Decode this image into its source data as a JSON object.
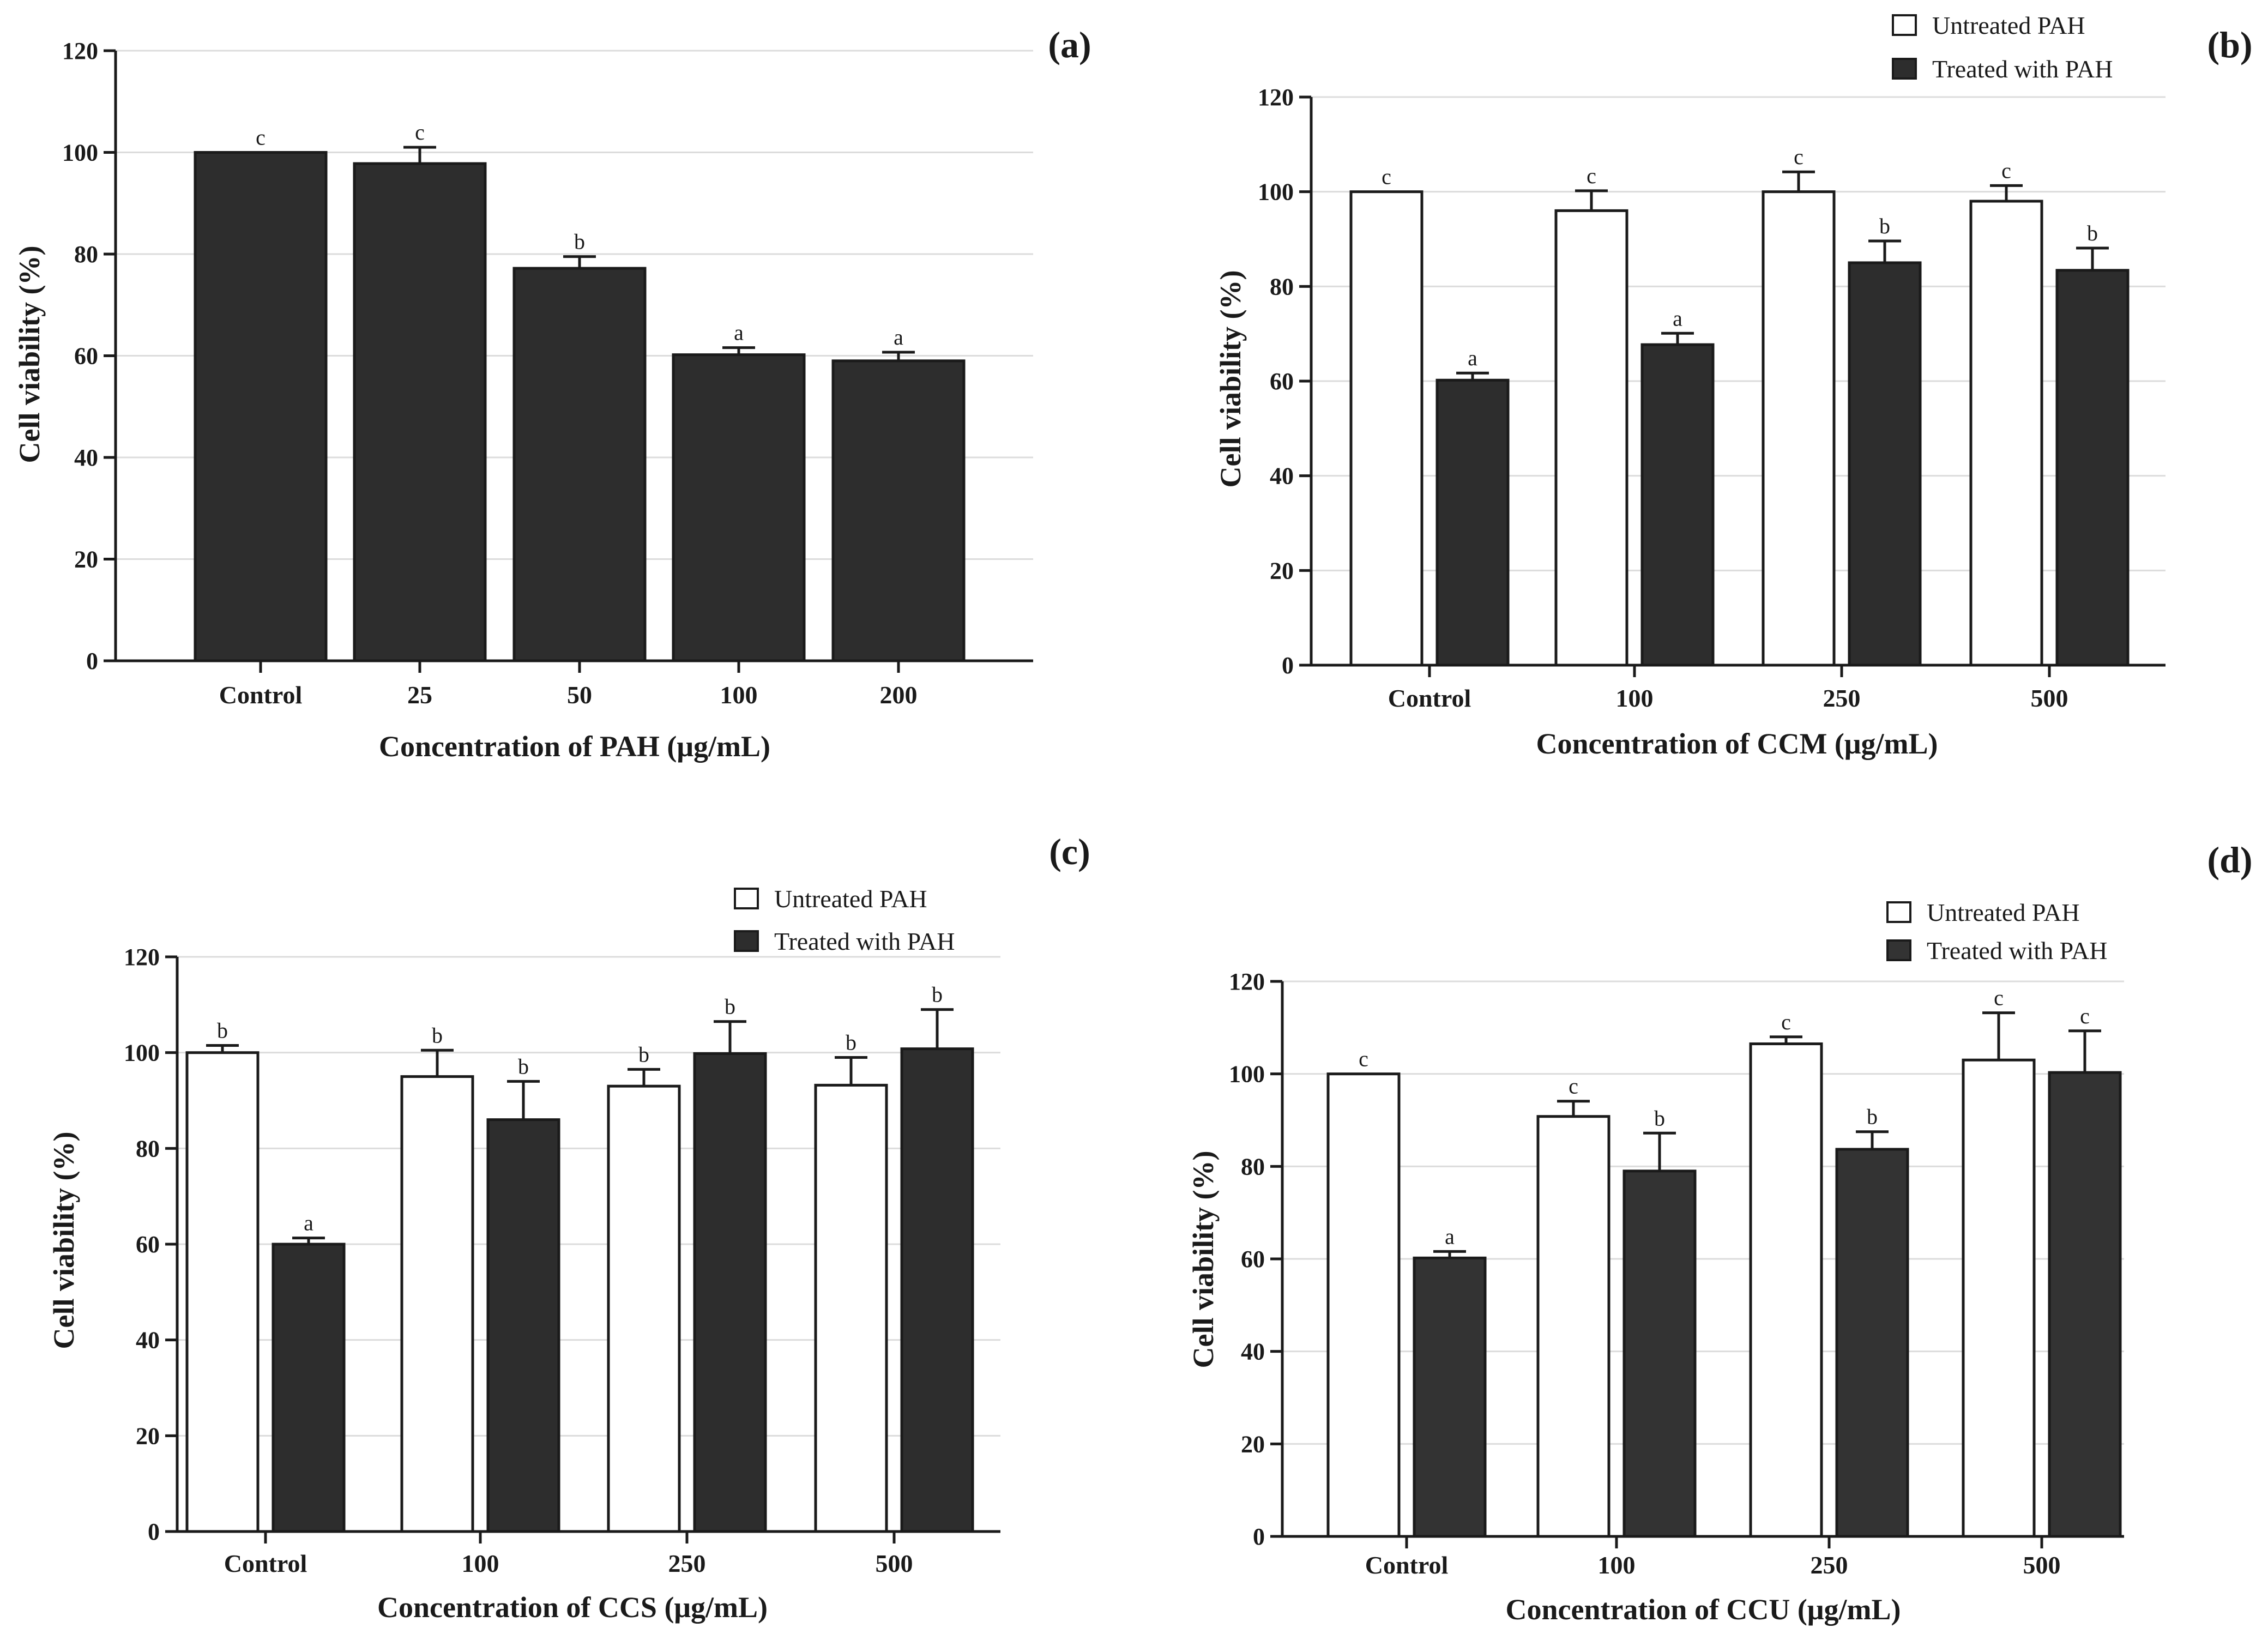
{
  "chart_data": [
    {
      "panel": "(a)",
      "type": "bar",
      "title": "",
      "xlabel": "Concentration of PAH (μg/mL)",
      "ylabel": "Cell viability (%)",
      "ylim": [
        0,
        120
      ],
      "yticks": [
        "0",
        "20",
        "40",
        "60",
        "80",
        "100",
        "120"
      ],
      "grid": true,
      "categories": [
        "Control",
        "25",
        "50",
        "100",
        "200"
      ],
      "series": [
        {
          "name": "",
          "fill": "#2d2d2d",
          "values": [
            100,
            97.8,
            77.2,
            60.2,
            59
          ],
          "errors": [
            0,
            3.2,
            2.3,
            1.4,
            1.7
          ],
          "letters": [
            "c",
            "c",
            "b",
            "a",
            "a"
          ]
        }
      ]
    },
    {
      "panel": "(b)",
      "type": "bar",
      "title": "",
      "xlabel": "Concentration of CCM (μg/mL)",
      "ylabel": "Cell viability (%)",
      "ylim": [
        0,
        120
      ],
      "yticks": [
        "0",
        "20",
        "40",
        "60",
        "80",
        "100",
        "120"
      ],
      "grid": true,
      "legend_position": "top-right",
      "categories": [
        "Control",
        "100",
        "250",
        "500"
      ],
      "series": [
        {
          "name": "Untreated PAH",
          "fill": "#ffffff",
          "values": [
            100,
            96,
            100,
            98
          ],
          "errors": [
            0,
            4.2,
            4.2,
            3.3
          ],
          "letters": [
            "c",
            "c",
            "c",
            "c"
          ]
        },
        {
          "name": "Treated with PAH",
          "fill": "#2d2d2d",
          "values": [
            60.2,
            67.7,
            85,
            83.4
          ],
          "errors": [
            1.5,
            2.4,
            4.6,
            4.7
          ],
          "letters": [
            "a",
            "a",
            "b",
            "b"
          ]
        }
      ]
    },
    {
      "panel": "(c)",
      "type": "bar",
      "title": "",
      "xlabel": "Concentration of CCS (μg/mL)",
      "ylabel": "Cell viability (%)",
      "ylim": [
        0,
        120
      ],
      "yticks": [
        "0",
        "20",
        "40",
        "60",
        "80",
        "100",
        "120"
      ],
      "grid": true,
      "legend_position": "top-right",
      "categories": [
        "Control",
        "100",
        "250",
        "500"
      ],
      "series": [
        {
          "name": "Untreated PAH",
          "fill": "#ffffff",
          "values": [
            100,
            95,
            93,
            93.2
          ],
          "errors": [
            1.5,
            5.5,
            3.5,
            5.8
          ],
          "letters": [
            "b",
            "b",
            "b",
            "b"
          ]
        },
        {
          "name": "Treated with PAH",
          "fill": "#2d2d2d",
          "values": [
            60,
            86,
            99.8,
            100.8
          ],
          "errors": [
            1.3,
            8,
            6.7,
            8.2
          ],
          "letters": [
            "a",
            "b",
            "b",
            "b"
          ]
        }
      ]
    },
    {
      "panel": "(d)",
      "type": "bar",
      "title": "",
      "xlabel": "Concentration of CCU (μg/mL)",
      "ylabel": "Cell viability (%)",
      "ylim": [
        0,
        120
      ],
      "yticks": [
        "0",
        "20",
        "40",
        "60",
        "80",
        "100",
        "120"
      ],
      "grid": true,
      "legend_position": "top-right",
      "categories": [
        "Control",
        "100",
        "250",
        "500"
      ],
      "series": [
        {
          "name": "Untreated PAH",
          "fill": "#ffffff",
          "values": [
            100,
            90.8,
            106.5,
            103
          ],
          "errors": [
            0,
            3.3,
            1.5,
            10.2
          ],
          "letters": [
            "c",
            "c",
            "c",
            "c"
          ]
        },
        {
          "name": "Treated with PAH",
          "fill": "#333333",
          "values": [
            60.2,
            79,
            83.7,
            100.3
          ],
          "errors": [
            1.4,
            8.2,
            3.8,
            9
          ],
          "letters": [
            "a",
            "b",
            "b",
            "c"
          ]
        }
      ]
    }
  ]
}
